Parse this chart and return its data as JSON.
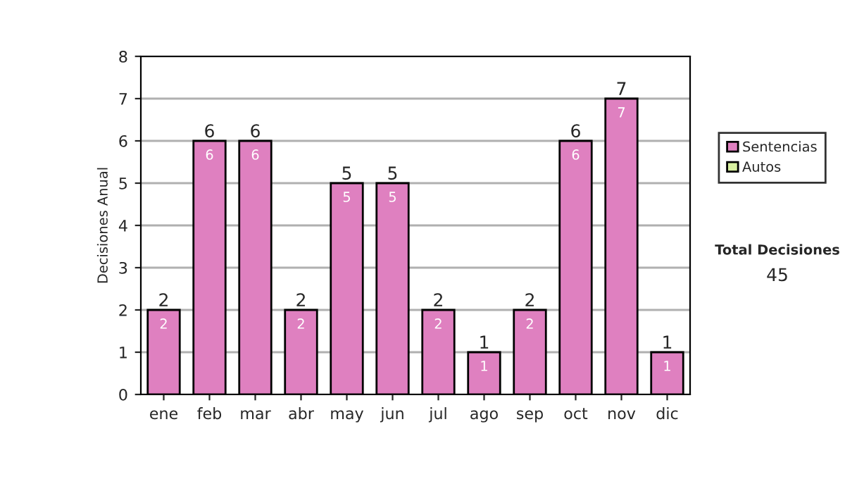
{
  "chart_data": {
    "type": "bar",
    "ylabel": "Decisiones Anual",
    "categories": [
      "ene",
      "feb",
      "mar",
      "abr",
      "may",
      "jun",
      "jul",
      "ago",
      "sep",
      "oct",
      "nov",
      "dic"
    ],
    "stacked": true,
    "series": [
      {
        "name": "Sentencias",
        "color": "#df80c0",
        "values": [
          2,
          6,
          6,
          2,
          5,
          5,
          2,
          1,
          2,
          6,
          7,
          1
        ],
        "value_labels": [
          "2",
          "6",
          "6",
          "2",
          "5",
          "5",
          "2",
          "1",
          "2",
          "6",
          "7",
          "1"
        ]
      },
      {
        "name": "Autos",
        "color": "#d8f0a0",
        "values": [
          0,
          0,
          0,
          0,
          0,
          0,
          0,
          0,
          0,
          0,
          0,
          0
        ]
      }
    ],
    "totals": [
      "2",
      "6",
      "6",
      "2",
      "5",
      "5",
      "2",
      "1",
      "2",
      "6",
      "7",
      "1"
    ],
    "ylim": [
      0,
      8
    ],
    "yticks": [
      0,
      1,
      2,
      3,
      4,
      5,
      6,
      7,
      8
    ],
    "grid": "y",
    "legend": "right",
    "annotations": [
      "Total Decisiones",
      "45"
    ]
  }
}
